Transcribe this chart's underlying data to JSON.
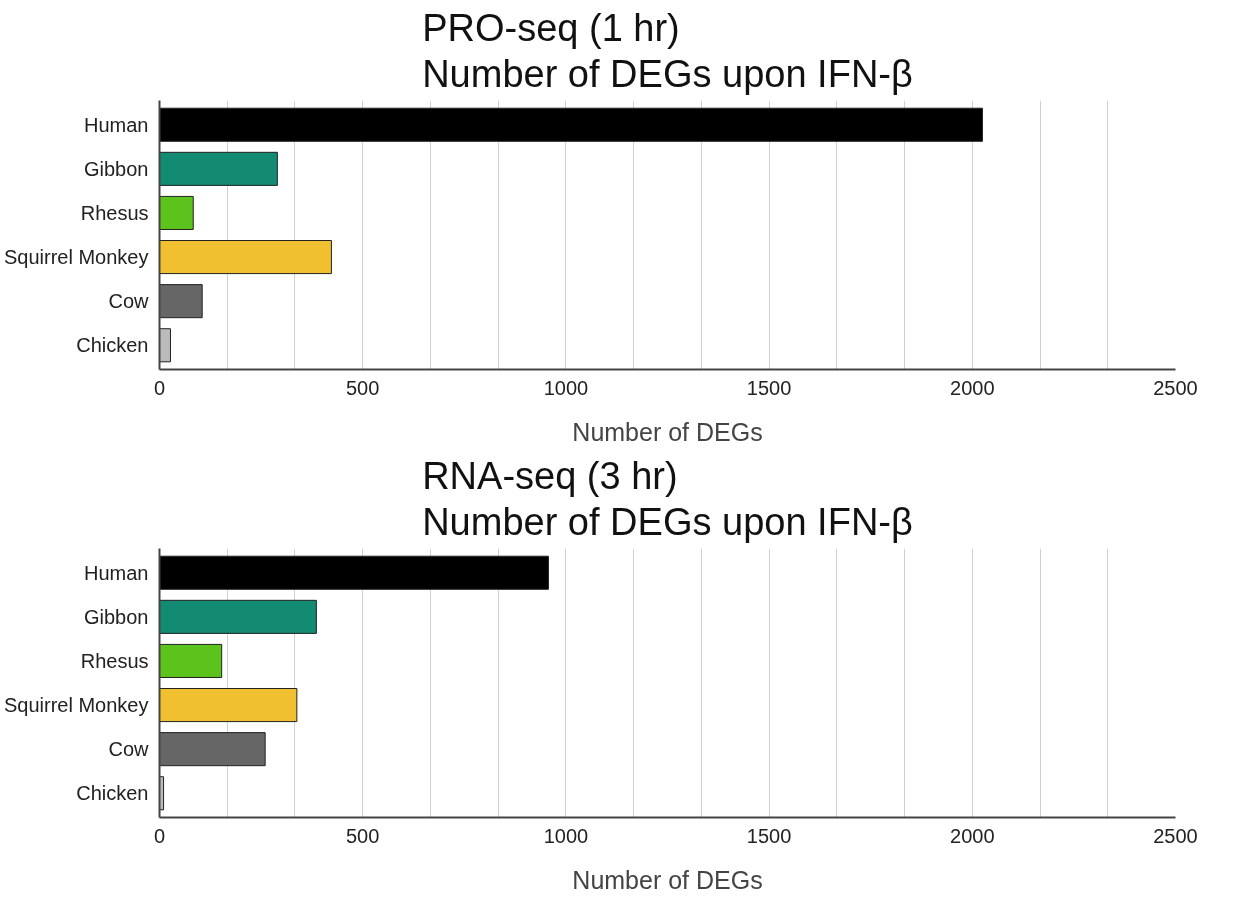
{
  "chart_data": [
    {
      "type": "bar",
      "orientation": "horizontal",
      "title": "PRO-seq (1 hr)\nNumber of DEGs upon IFN-β",
      "xlabel": "Number of DEGs",
      "categories": [
        "Human",
        "Gibbon",
        "Rhesus",
        "Squirrel Monkey",
        "Cow",
        "Chicken"
      ],
      "values": [
        2025,
        290,
        83,
        423,
        105,
        27
      ],
      "colors": [
        "#000000",
        "#138a72",
        "#5cc21c",
        "#f0c030",
        "#666666",
        "#bbbbbb"
      ],
      "xlim": [
        0,
        2500
      ],
      "xticks": [
        0,
        {
          "value": 166.7,
          "label": null
        },
        {
          "value": 333.3,
          "label": null
        },
        500,
        {
          "value": 666.7,
          "label": null
        },
        {
          "value": 833.3,
          "label": null
        },
        1000,
        {
          "value": 1166.7,
          "label": null
        },
        {
          "value": 1333.3,
          "label": null
        },
        1500,
        {
          "value": 1666.7,
          "label": null
        },
        {
          "value": 1833.3,
          "label": null
        },
        2000,
        {
          "value": 2166.7,
          "label": null
        },
        {
          "value": 2333.3,
          "label": null
        },
        2500
      ],
      "grid": "x"
    },
    {
      "type": "bar",
      "orientation": "horizontal",
      "title": "RNA-seq (3 hr)\nNumber of DEGs upon IFN-β",
      "xlabel": "Number of DEGs",
      "categories": [
        "Human",
        "Gibbon",
        "Rhesus",
        "Squirrel Monkey",
        "Cow",
        "Chicken"
      ],
      "values": [
        957,
        386,
        153,
        338,
        260,
        10
      ],
      "colors": [
        "#000000",
        "#138a72",
        "#5cc21c",
        "#f0c030",
        "#666666",
        "#bbbbbb"
      ],
      "xlim": [
        0,
        2500
      ],
      "xticks": [
        0,
        {
          "value": 166.7,
          "label": null
        },
        {
          "value": 333.3,
          "label": null
        },
        500,
        {
          "value": 666.7,
          "label": null
        },
        {
          "value": 833.3,
          "label": null
        },
        1000,
        {
          "value": 1166.7,
          "label": null
        },
        {
          "value": 1333.3,
          "label": null
        },
        1500,
        {
          "value": 1666.7,
          "label": null
        },
        {
          "value": 1833.3,
          "label": null
        },
        2000,
        {
          "value": 2166.7,
          "label": null
        },
        {
          "value": 2333.3,
          "label": null
        },
        2500
      ],
      "grid": "x"
    }
  ]
}
